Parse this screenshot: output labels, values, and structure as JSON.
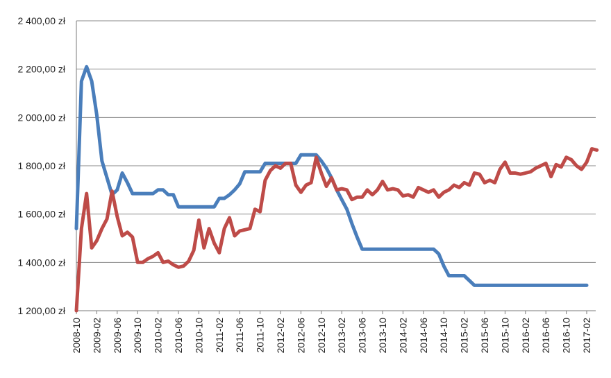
{
  "chart_data": {
    "type": "line",
    "title": "",
    "xlabel": "",
    "ylabel": "",
    "ylim": [
      1200,
      2400
    ],
    "yticks": [
      {
        "value": 1200,
        "label": "1 200,00 zł"
      },
      {
        "value": 1400,
        "label": "1 400,00 zł"
      },
      {
        "value": 1600,
        "label": "1 600,00 zł"
      },
      {
        "value": 1800,
        "label": "1 800,00 zł"
      },
      {
        "value": 2000,
        "label": "2 000,00 zł"
      },
      {
        "value": 2200,
        "label": "2 200,00 zł"
      },
      {
        "value": 2400,
        "label": "2 400,00 zł"
      }
    ],
    "x_start": "2008-10",
    "x_end": "2017-02",
    "xticks": [
      "2008-10",
      "2009-02",
      "2009-06",
      "2009-10",
      "2010-02",
      "2010-06",
      "2010-10",
      "2011-02",
      "2011-06",
      "2011-10",
      "2012-02",
      "2012-06",
      "2012-10",
      "2013-02",
      "2013-06",
      "2013-10",
      "2014-02",
      "2014-06",
      "2014-10",
      "2015-02",
      "2015-06",
      "2015-10",
      "2016-02",
      "2016-06",
      "2016-10",
      "2017-02"
    ],
    "grid": true,
    "legend": "none",
    "series": [
      {
        "color": "#4a7ebb",
        "points": [
          [
            "2008-10",
            1540
          ],
          [
            "2008-11",
            2150
          ],
          [
            "2008-12",
            2210
          ],
          [
            "2009-01",
            2150
          ],
          [
            "2009-02",
            2010
          ],
          [
            "2009-03",
            1820
          ],
          [
            "2009-04",
            1750
          ],
          [
            "2009-05",
            1680
          ],
          [
            "2009-06",
            1700
          ],
          [
            "2009-07",
            1770
          ],
          [
            "2009-08",
            1730
          ],
          [
            "2009-09",
            1685
          ],
          [
            "2010-01",
            1685
          ],
          [
            "2010-02",
            1700
          ],
          [
            "2010-03",
            1700
          ],
          [
            "2010-04",
            1680
          ],
          [
            "2010-05",
            1680
          ],
          [
            "2010-06",
            1630
          ],
          [
            "2011-01",
            1630
          ],
          [
            "2011-02",
            1665
          ],
          [
            "2011-03",
            1665
          ],
          [
            "2011-04",
            1680
          ],
          [
            "2011-05",
            1700
          ],
          [
            "2011-06",
            1725
          ],
          [
            "2011-07",
            1775
          ],
          [
            "2011-09",
            1775
          ],
          [
            "2011-10",
            1775
          ],
          [
            "2011-11",
            1810
          ],
          [
            "2012-05",
            1810
          ],
          [
            "2012-06",
            1845
          ],
          [
            "2012-09",
            1845
          ],
          [
            "2012-10",
            1820
          ],
          [
            "2012-11",
            1790
          ],
          [
            "2012-12",
            1750
          ],
          [
            "2013-01",
            1700
          ],
          [
            "2013-02",
            1660
          ],
          [
            "2013-03",
            1620
          ],
          [
            "2013-04",
            1560
          ],
          [
            "2013-05",
            1505
          ],
          [
            "2013-06",
            1455
          ],
          [
            "2014-08",
            1455
          ],
          [
            "2014-09",
            1435
          ],
          [
            "2014-10",
            1385
          ],
          [
            "2014-11",
            1345
          ],
          [
            "2015-02",
            1345
          ],
          [
            "2015-03",
            1325
          ],
          [
            "2015-04",
            1305
          ],
          [
            "2017-02",
            1305
          ]
        ]
      },
      {
        "color": "#be4b48",
        "points": [
          [
            "2008-10",
            1200
          ],
          [
            "2008-11",
            1540
          ],
          [
            "2008-12",
            1685
          ],
          [
            "2009-01",
            1460
          ],
          [
            "2009-02",
            1490
          ],
          [
            "2009-03",
            1540
          ],
          [
            "2009-04",
            1580
          ],
          [
            "2009-05",
            1695
          ],
          [
            "2009-06",
            1590
          ],
          [
            "2009-07",
            1510
          ],
          [
            "2009-08",
            1525
          ],
          [
            "2009-09",
            1505
          ],
          [
            "2009-10",
            1400
          ],
          [
            "2009-11",
            1400
          ],
          [
            "2009-12",
            1415
          ],
          [
            "2010-01",
            1425
          ],
          [
            "2010-02",
            1440
          ],
          [
            "2010-03",
            1400
          ],
          [
            "2010-04",
            1405
          ],
          [
            "2010-05",
            1390
          ],
          [
            "2010-06",
            1380
          ],
          [
            "2010-07",
            1385
          ],
          [
            "2010-08",
            1405
          ],
          [
            "2010-09",
            1450
          ],
          [
            "2010-10",
            1575
          ],
          [
            "2010-11",
            1460
          ],
          [
            "2010-12",
            1540
          ],
          [
            "2011-01",
            1480
          ],
          [
            "2011-02",
            1440
          ],
          [
            "2011-03",
            1540
          ],
          [
            "2011-04",
            1585
          ],
          [
            "2011-05",
            1510
          ],
          [
            "2011-06",
            1530
          ],
          [
            "2011-07",
            1535
          ],
          [
            "2011-08",
            1540
          ],
          [
            "2011-09",
            1620
          ],
          [
            "2011-10",
            1610
          ],
          [
            "2011-11",
            1740
          ],
          [
            "2011-12",
            1780
          ],
          [
            "2012-01",
            1800
          ],
          [
            "2012-02",
            1790
          ],
          [
            "2012-03",
            1810
          ],
          [
            "2012-04",
            1810
          ],
          [
            "2012-05",
            1720
          ],
          [
            "2012-06",
            1690
          ],
          [
            "2012-07",
            1720
          ],
          [
            "2012-08",
            1730
          ],
          [
            "2012-09",
            1835
          ],
          [
            "2012-10",
            1770
          ],
          [
            "2012-11",
            1715
          ],
          [
            "2012-12",
            1750
          ],
          [
            "2013-01",
            1700
          ],
          [
            "2013-02",
            1705
          ],
          [
            "2013-03",
            1700
          ],
          [
            "2013-04",
            1660
          ],
          [
            "2013-05",
            1670
          ],
          [
            "2013-06",
            1670
          ],
          [
            "2013-07",
            1700
          ],
          [
            "2013-08",
            1680
          ],
          [
            "2013-09",
            1700
          ],
          [
            "2013-10",
            1735
          ],
          [
            "2013-11",
            1700
          ],
          [
            "2013-12",
            1705
          ],
          [
            "2014-01",
            1700
          ],
          [
            "2014-02",
            1675
          ],
          [
            "2014-03",
            1680
          ],
          [
            "2014-04",
            1670
          ],
          [
            "2014-05",
            1710
          ],
          [
            "2014-06",
            1700
          ],
          [
            "2014-07",
            1690
          ],
          [
            "2014-08",
            1700
          ],
          [
            "2014-09",
            1670
          ],
          [
            "2014-10",
            1690
          ],
          [
            "2014-11",
            1700
          ],
          [
            "2014-12",
            1720
          ],
          [
            "2015-01",
            1710
          ],
          [
            "2015-02",
            1730
          ],
          [
            "2015-03",
            1720
          ],
          [
            "2015-04",
            1770
          ],
          [
            "2015-05",
            1765
          ],
          [
            "2015-06",
            1730
          ],
          [
            "2015-07",
            1740
          ],
          [
            "2015-08",
            1730
          ],
          [
            "2015-09",
            1785
          ],
          [
            "2015-10",
            1815
          ],
          [
            "2015-11",
            1770
          ],
          [
            "2015-12",
            1770
          ],
          [
            "2016-01",
            1765
          ],
          [
            "2016-02",
            1770
          ],
          [
            "2016-03",
            1775
          ],
          [
            "2016-04",
            1790
          ],
          [
            "2016-05",
            1800
          ],
          [
            "2016-06",
            1810
          ],
          [
            "2016-07",
            1755
          ],
          [
            "2016-08",
            1805
          ],
          [
            "2016-09",
            1795
          ],
          [
            "2016-10",
            1835
          ],
          [
            "2016-11",
            1825
          ],
          [
            "2016-12",
            1800
          ],
          [
            "2017-01",
            1785
          ],
          [
            "2017-02",
            1815
          ],
          [
            "2017-03",
            1870
          ],
          [
            "2017-04",
            1865
          ]
        ]
      }
    ]
  }
}
